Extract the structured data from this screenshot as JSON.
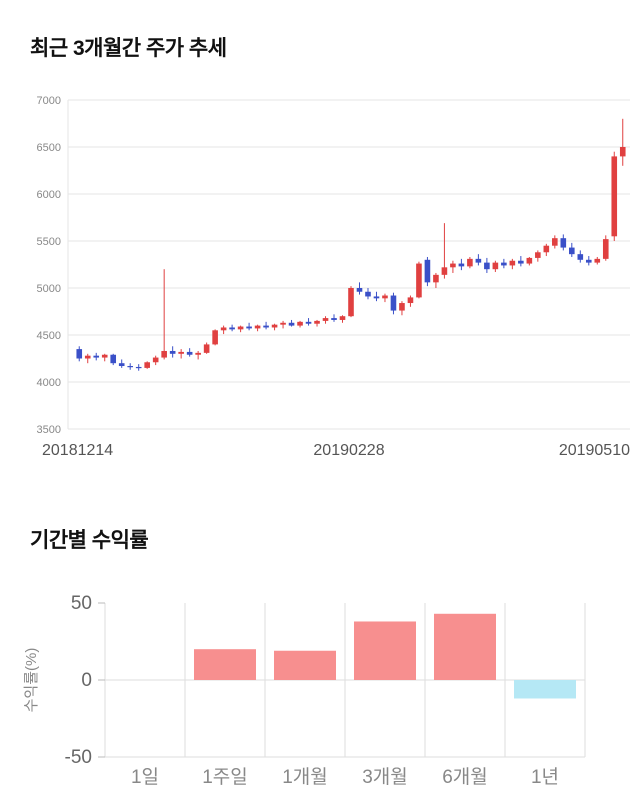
{
  "price_section": {
    "title": "최근 3개월간 주가 추세"
  },
  "returns_section": {
    "title": "기간별 수익률"
  },
  "chart_data": [
    {
      "type": "candlestick",
      "title": "최근 3개월간 주가 추세",
      "ylim": [
        3500,
        7000
      ],
      "yticks": [
        3500,
        4000,
        4500,
        5000,
        5500,
        6000,
        6500,
        7000
      ],
      "xtick_labels": [
        "20181214",
        "20190228",
        "20190510"
      ],
      "up_color": "#e04040",
      "down_color": "#3a50c8",
      "grid_color": "#e6e6e6",
      "grid": true,
      "candles": [
        [
          4350,
          4380,
          4220,
          4250
        ],
        [
          4250,
          4300,
          4200,
          4280
        ],
        [
          4280,
          4310,
          4230,
          4260
        ],
        [
          4260,
          4300,
          4220,
          4290
        ],
        [
          4290,
          4300,
          4180,
          4200
        ],
        [
          4200,
          4240,
          4150,
          4170
        ],
        [
          4170,
          4200,
          4130,
          4160
        ],
        [
          4160,
          4190,
          4120,
          4150
        ],
        [
          4150,
          4220,
          4140,
          4210
        ],
        [
          4210,
          4280,
          4180,
          4260
        ],
        [
          4260,
          5200,
          4240,
          4330
        ],
        [
          4330,
          4380,
          4260,
          4300
        ],
        [
          4300,
          4350,
          4250,
          4320
        ],
        [
          4320,
          4360,
          4270,
          4290
        ],
        [
          4290,
          4330,
          4240,
          4310
        ],
        [
          4310,
          4420,
          4300,
          4400
        ],
        [
          4400,
          4560,
          4390,
          4550
        ],
        [
          4550,
          4600,
          4510,
          4580
        ],
        [
          4580,
          4610,
          4540,
          4560
        ],
        [
          4560,
          4600,
          4530,
          4590
        ],
        [
          4590,
          4630,
          4550,
          4570
        ],
        [
          4570,
          4610,
          4540,
          4600
        ],
        [
          4600,
          4640,
          4560,
          4580
        ],
        [
          4580,
          4620,
          4550,
          4610
        ],
        [
          4610,
          4650,
          4570,
          4630
        ],
        [
          4630,
          4660,
          4590,
          4600
        ],
        [
          4600,
          4650,
          4580,
          4640
        ],
        [
          4640,
          4680,
          4600,
          4620
        ],
        [
          4620,
          4660,
          4590,
          4650
        ],
        [
          4650,
          4700,
          4620,
          4680
        ],
        [
          4680,
          4720,
          4640,
          4660
        ],
        [
          4660,
          4710,
          4630,
          4700
        ],
        [
          4700,
          5020,
          4690,
          5000
        ],
        [
          5000,
          5060,
          4930,
          4960
        ],
        [
          4960,
          5000,
          4880,
          4910
        ],
        [
          4910,
          4960,
          4860,
          4890
        ],
        [
          4890,
          4940,
          4850,
          4920
        ],
        [
          4920,
          4950,
          4720,
          4760
        ],
        [
          4760,
          4860,
          4710,
          4840
        ],
        [
          4840,
          4920,
          4800,
          4900
        ],
        [
          4900,
          5280,
          4890,
          5260
        ],
        [
          5300,
          5330,
          5020,
          5060
        ],
        [
          5060,
          5160,
          5000,
          5140
        ],
        [
          5140,
          5690,
          5100,
          5220
        ],
        [
          5220,
          5290,
          5160,
          5260
        ],
        [
          5260,
          5310,
          5190,
          5230
        ],
        [
          5230,
          5330,
          5210,
          5310
        ],
        [
          5310,
          5360,
          5240,
          5270
        ],
        [
          5270,
          5320,
          5160,
          5200
        ],
        [
          5200,
          5290,
          5170,
          5270
        ],
        [
          5270,
          5310,
          5210,
          5240
        ],
        [
          5240,
          5310,
          5200,
          5290
        ],
        [
          5290,
          5340,
          5230,
          5260
        ],
        [
          5260,
          5330,
          5240,
          5320
        ],
        [
          5320,
          5400,
          5280,
          5380
        ],
        [
          5380,
          5470,
          5340,
          5450
        ],
        [
          5450,
          5560,
          5420,
          5530
        ],
        [
          5530,
          5570,
          5400,
          5430
        ],
        [
          5430,
          5480,
          5330,
          5360
        ],
        [
          5360,
          5400,
          5270,
          5300
        ],
        [
          5300,
          5340,
          5240,
          5270
        ],
        [
          5270,
          5330,
          5250,
          5310
        ],
        [
          5310,
          5560,
          5290,
          5520
        ],
        [
          5550,
          6450,
          5500,
          6400
        ],
        [
          6400,
          6800,
          6300,
          6500
        ]
      ]
    },
    {
      "type": "bar",
      "title": "기간별 수익률",
      "ylabel": "수익률(%)",
      "ylim": [
        -50,
        50
      ],
      "yticks": [
        50,
        0,
        -50
      ],
      "categories": [
        "1일",
        "1주일",
        "1개월",
        "3개월",
        "6개월",
        "1년"
      ],
      "values": [
        0,
        20,
        19,
        38,
        43,
        -12
      ],
      "positive_color": "#f78f8f",
      "negative_color": "#b5e8f5",
      "grid_color": "#dddddd",
      "grid": true,
      "legend": "none"
    }
  ]
}
